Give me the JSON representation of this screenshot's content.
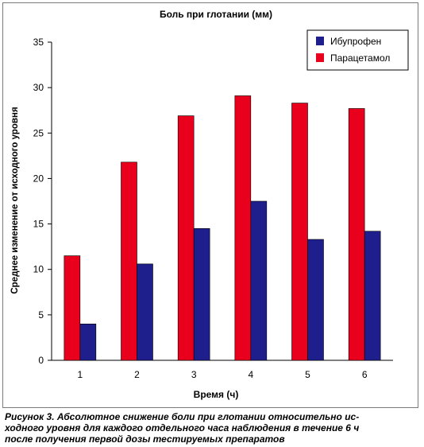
{
  "chart_data": {
    "type": "bar",
    "title": "Боль при глотании (мм)",
    "xlabel": "Время (ч)",
    "ylabel": "Среднее изменение от исходного уровня",
    "categories": [
      "1",
      "2",
      "3",
      "4",
      "5",
      "6"
    ],
    "series": [
      {
        "name": "Ибупрофен",
        "color": "#1e1e8c",
        "values": [
          4.0,
          10.6,
          14.5,
          17.5,
          13.3,
          14.2
        ]
      },
      {
        "name": "Парацетамол",
        "color": "#e8001c",
        "values": [
          11.5,
          21.8,
          26.9,
          29.1,
          28.3,
          27.7
        ]
      }
    ],
    "ylim": [
      0,
      35
    ],
    "yticks": [
      0,
      5,
      10,
      15,
      20,
      25,
      30,
      35
    ],
    "grid": false,
    "legend_position": "top-right"
  },
  "caption": {
    "lines": [
      "Рисунок 3. Абсолютное снижение боли при глотании относительно ис-",
      "ходного уровня для каждого отдельного часа наблюдения в течение 6 ч",
      "после получения первой дозы тестируемых препаратов"
    ]
  }
}
